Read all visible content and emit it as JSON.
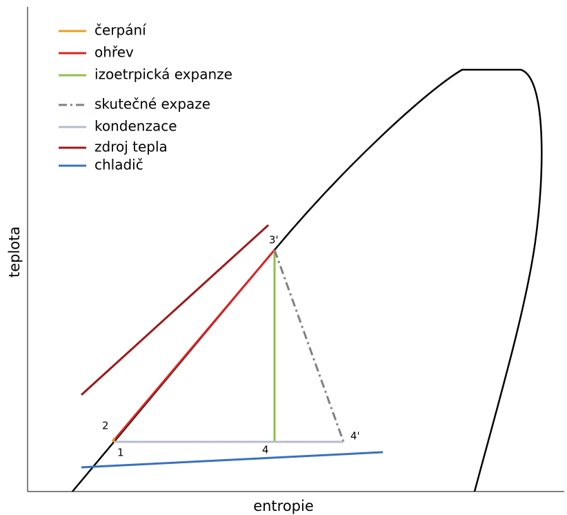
{
  "axes": {
    "y_label": "teplota",
    "x_label": "entropie"
  },
  "legend": [
    "čerpání",
    "ohřev",
    "izoetrpická expanze",
    "skutečné expaze",
    "kondenzace",
    "zdroj tepla",
    "chladič"
  ],
  "points": [
    "2",
    "1",
    "4",
    "4'",
    "3'"
  ]
}
